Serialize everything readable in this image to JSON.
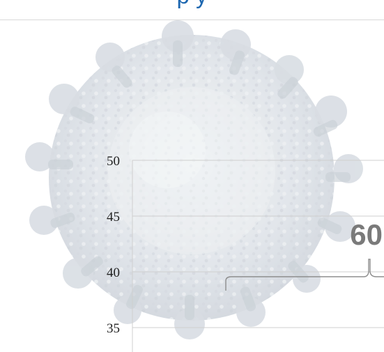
{
  "header": {
    "title_fragment": "p     y"
  },
  "chart_data": {
    "type": "bar",
    "title": "",
    "xlabel": "",
    "ylabel": "",
    "y_ticks": [
      50,
      45,
      40,
      35
    ],
    "ylim": [
      32,
      50
    ],
    "grid": true,
    "annotations": [
      {
        "label": "60",
        "bracket_level": 40
      }
    ],
    "colors": {
      "gridline": "#cfcfcf",
      "axis": "#cfcfcf",
      "tick_text": "#222222",
      "annotation_text": "#7a7a7a",
      "bracket": "#8d8d8d",
      "title": "#1d67b0"
    }
  }
}
